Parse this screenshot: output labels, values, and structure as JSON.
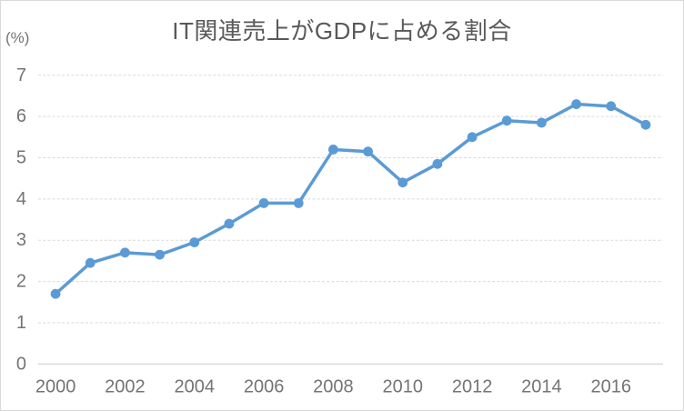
{
  "chart_data": {
    "type": "line",
    "title": "IT関連売上がGDPに占める割合",
    "ylabel": "(%)",
    "xlabel": "",
    "x": [
      2000,
      2001,
      2002,
      2003,
      2004,
      2005,
      2006,
      2007,
      2008,
      2009,
      2010,
      2011,
      2012,
      2013,
      2014,
      2015,
      2016,
      2017
    ],
    "values": [
      1.7,
      2.45,
      2.7,
      2.65,
      2.95,
      3.4,
      3.9,
      3.9,
      5.2,
      5.15,
      4.4,
      4.85,
      5.5,
      5.9,
      5.85,
      6.3,
      6.25,
      5.8
    ],
    "xtick_labels": [
      "2000",
      "2002",
      "2004",
      "2006",
      "2008",
      "2010",
      "2012",
      "2014",
      "2016"
    ],
    "yticks": [
      0,
      1,
      2,
      3,
      4,
      5,
      6,
      7
    ],
    "ylim": [
      0,
      7
    ],
    "grid": "horizontal",
    "gridline_style": "dashed",
    "legend": "none",
    "marker": "circle",
    "colors": {
      "series": "#5B9BD5",
      "gridline": "#D9D9D9",
      "axis_line": "#C8C8C8",
      "tick_label": "#747474",
      "title": "#595959",
      "chart_border": "#D9D9D9",
      "background": "#FFFFFF"
    }
  }
}
